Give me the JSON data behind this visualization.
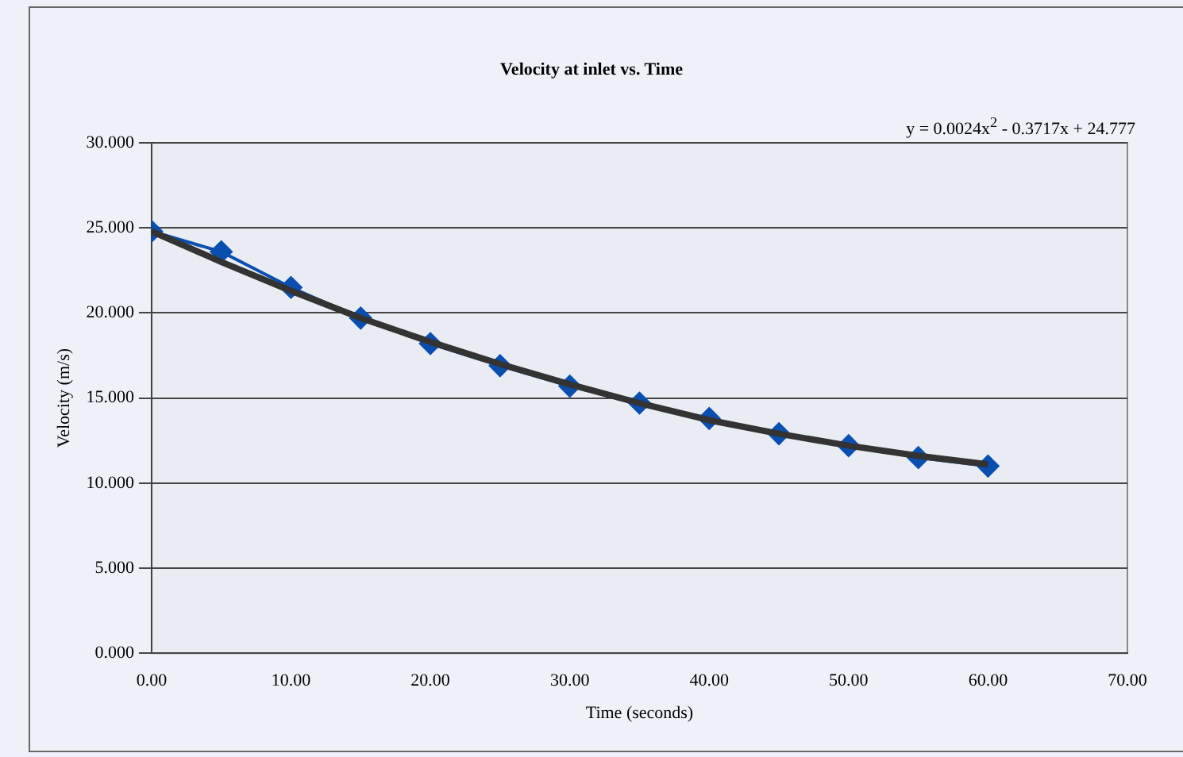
{
  "chart_data": {
    "type": "line",
    "title": "Velocity at inlet vs. Time",
    "xlabel": "Time (seconds)",
    "ylabel": "Velocity (m/s)",
    "annotations": [
      "y = 0.0024x$^{2}$ - 0.3717x + 24.777"
    ],
    "x": [
      0,
      5,
      10,
      15,
      20,
      25,
      30,
      35,
      40,
      45,
      50,
      55,
      60
    ],
    "series": [
      {
        "color": "#0a4fb0",
        "marker": "diamond",
        "values": [
          24.8,
          23.6,
          21.5,
          19.7,
          18.2,
          16.9,
          15.7,
          14.7,
          13.8,
          12.9,
          12.2,
          11.5,
          11.0
        ]
      },
      {
        "color": "#333333",
        "marker": "none",
        "x": [
          0,
          5,
          10,
          15,
          20,
          25,
          30,
          35,
          40,
          45,
          50,
          55,
          60
        ],
        "values": [
          24.8,
          23.0,
          21.3,
          19.7,
          18.3,
          17.0,
          15.8,
          14.7,
          13.7,
          12.9,
          12.2,
          11.6,
          11.1
        ]
      }
    ],
    "xlim": [
      0,
      70
    ],
    "xticks": [
      {
        "value": 0,
        "label": "0.00"
      },
      {
        "value": 10,
        "label": "10.00"
      },
      {
        "value": 20,
        "label": "20.00"
      },
      {
        "value": 30,
        "label": "30.00"
      },
      {
        "value": 40,
        "label": "40.00"
      },
      {
        "value": 50,
        "label": "50.00"
      },
      {
        "value": 60,
        "label": "60.00"
      },
      {
        "value": 70,
        "label": "70.00"
      }
    ],
    "ylim": [
      0,
      30
    ],
    "yticks": [
      {
        "value": 0,
        "label": "0.000"
      },
      {
        "value": 5,
        "label": "5.000"
      },
      {
        "value": 10,
        "label": "10.000"
      },
      {
        "value": 15,
        "label": "15.000"
      },
      {
        "value": 20,
        "label": "20.000"
      },
      {
        "value": 25,
        "label": "25.000"
      },
      {
        "value": 30,
        "label": "30.000"
      }
    ],
    "grid": "y",
    "legend": false
  }
}
